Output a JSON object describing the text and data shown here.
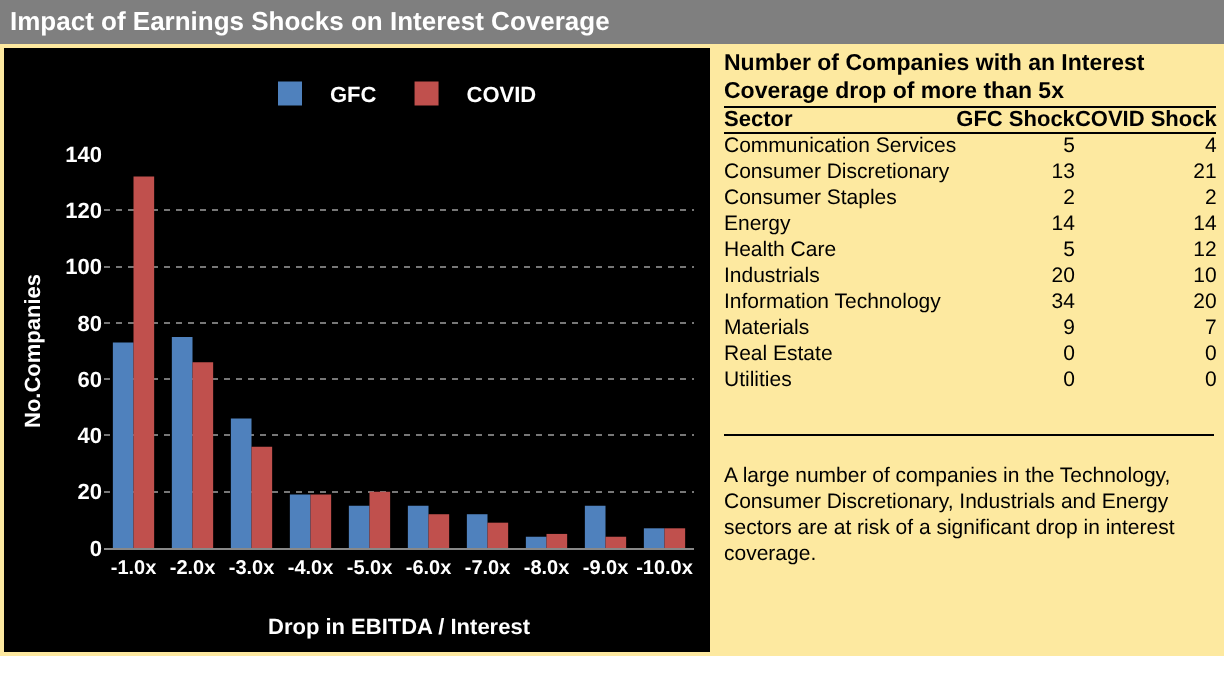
{
  "chart_data": [
    {
      "type": "bar",
      "title": "Impact of Earnings Shocks on Interest Coverage",
      "xlabel": "Drop in EBITDA / Interest",
      "ylabel": "No.Companies",
      "categories": [
        "-1.0x",
        "-2.0x",
        "-3.0x",
        "-4.0x",
        "-5.0x",
        "-6.0x",
        "-7.0x",
        "-8.0x",
        "-9.0x",
        "-10.0x"
      ],
      "series": [
        {
          "name": "GFC",
          "color": "#4f81bd",
          "values": [
            73,
            75,
            46,
            19,
            15,
            15,
            12,
            4,
            15,
            7
          ]
        },
        {
          "name": "COVID",
          "color": "#c0504d",
          "values": [
            132,
            66,
            36,
            19,
            20,
            12,
            9,
            5,
            4,
            7
          ]
        }
      ],
      "ylim": [
        0,
        140
      ],
      "yticks": [
        0,
        20,
        40,
        60,
        80,
        100,
        120,
        140
      ],
      "grid": "y",
      "legend": "top"
    },
    {
      "type": "other",
      "title": "Number of Companies with an Interest Coverage drop of more than 5x",
      "xlabel": "Sector",
      "categories": [
        "Communication Services",
        "Consumer Discretionary",
        "Consumer Staples",
        "Energy",
        "Health Care",
        "Industrials",
        "Information Technology",
        "Materials",
        "Real Estate",
        "Utilities"
      ],
      "series": [
        {
          "name": "GFC Shock",
          "values": [
            5,
            13,
            2,
            14,
            5,
            20,
            34,
            9,
            0,
            0
          ]
        },
        {
          "name": "COVID Shock",
          "values": [
            4,
            21,
            2,
            14,
            12,
            10,
            20,
            7,
            0,
            0
          ]
        }
      ],
      "data_labels": true,
      "annotations": [
        "A large number of companies in the Technology, Consumer Discretionary, Industrials and Energy sectors are at risk of a significant drop in interest coverage."
      ]
    }
  ]
}
